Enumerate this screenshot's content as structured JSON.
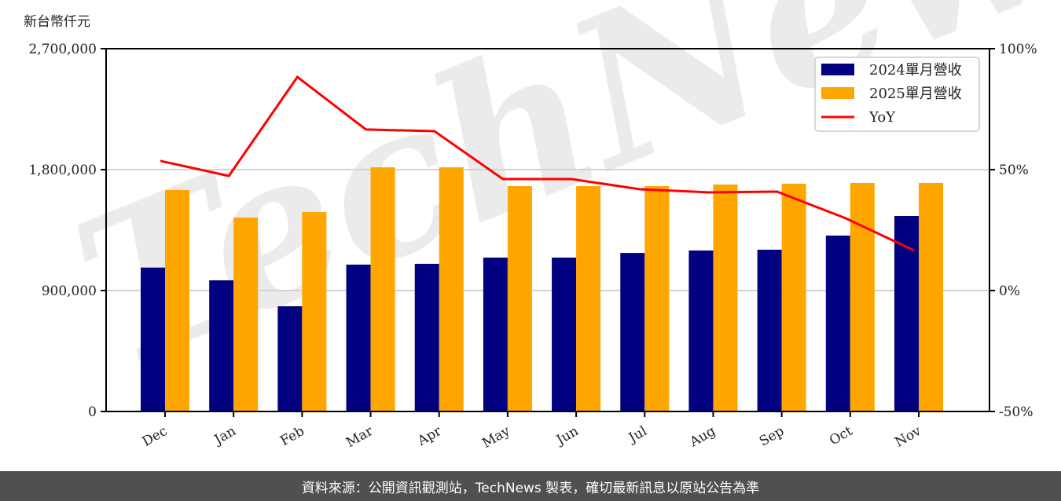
{
  "header": {
    "unit_label": "新台幣仟元"
  },
  "footer": {
    "source_text": "資料來源：公開資訊觀測站，TechNews 製表，確切最新訊息以原站公告為準"
  },
  "watermark": {
    "text": "TechNews"
  },
  "colors": {
    "series_2024": "#000080",
    "series_2025": "#FFA500",
    "yoy_line": "#FF0000",
    "footer_bg": "#505050"
  },
  "chart_data": {
    "type": "bar",
    "title": "",
    "xlabel": "",
    "ylabel": "新台幣仟元",
    "y2label": "",
    "categories": [
      "Dec",
      "Jan",
      "Feb",
      "Mar",
      "Apr",
      "May",
      "Jun",
      "Jul",
      "Aug",
      "Sep",
      "Oct",
      "Nov"
    ],
    "series": [
      {
        "name": "2024單月營收",
        "type": "bar",
        "axis": "left",
        "color": "#000080",
        "values": [
          1071000,
          976000,
          783000,
          1093000,
          1099000,
          1145000,
          1145000,
          1180000,
          1198000,
          1204000,
          1309000,
          1455000
        ]
      },
      {
        "name": "2025單月營收",
        "type": "bar",
        "axis": "left",
        "color": "#FFA500",
        "values": [
          1648000,
          1443000,
          1484000,
          1817000,
          1817000,
          1677000,
          1677000,
          1677000,
          1689000,
          1695000,
          1701000,
          1701000
        ]
      },
      {
        "name": "YoY",
        "type": "line",
        "axis": "right",
        "color": "#FF0000",
        "unit": "%",
        "values": [
          53.6,
          47.4,
          88.3,
          66.6,
          65.9,
          46.1,
          46.1,
          41.9,
          40.6,
          40.9,
          29.9,
          16.6
        ]
      }
    ],
    "ylim": [
      0,
      2700000
    ],
    "y2lim": [
      -50,
      100
    ],
    "yticks": [
      "0",
      "900,000",
      "1,800,000",
      "2,700,000"
    ],
    "y2ticks": [
      "-50%",
      "0%",
      "50%",
      "100%"
    ],
    "grid": "horizontal",
    "legend_position": "upper right",
    "legend": [
      "2024單月營收",
      "2025單月營收",
      "YoY"
    ]
  }
}
